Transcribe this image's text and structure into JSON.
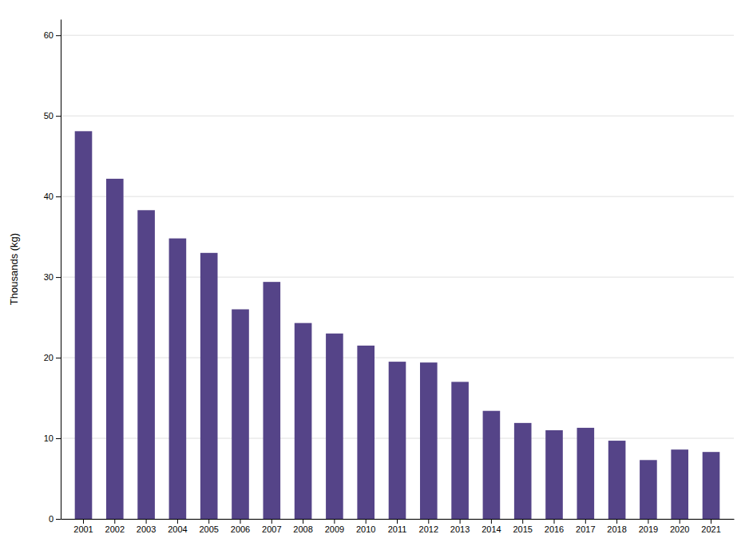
{
  "chart_data": {
    "type": "bar",
    "categories": [
      "2001",
      "2002",
      "2003",
      "2004",
      "2005",
      "2006",
      "2007",
      "2008",
      "2009",
      "2010",
      "2011",
      "2012",
      "2013",
      "2014",
      "2015",
      "2016",
      "2017",
      "2018",
      "2019",
      "2020",
      "2021"
    ],
    "values": [
      48.1,
      42.2,
      38.3,
      34.8,
      33.0,
      26.0,
      29.4,
      24.3,
      23.0,
      21.5,
      19.5,
      19.4,
      17.0,
      13.4,
      11.9,
      11.0,
      11.3,
      9.7,
      7.3,
      8.6,
      8.3
    ],
    "color": "#554488",
    "ylabel": "Thousands (kg)",
    "ylim": [
      0,
      62
    ],
    "yticks": [
      0,
      10,
      20,
      30,
      40,
      50,
      60
    ],
    "grid": true
  }
}
